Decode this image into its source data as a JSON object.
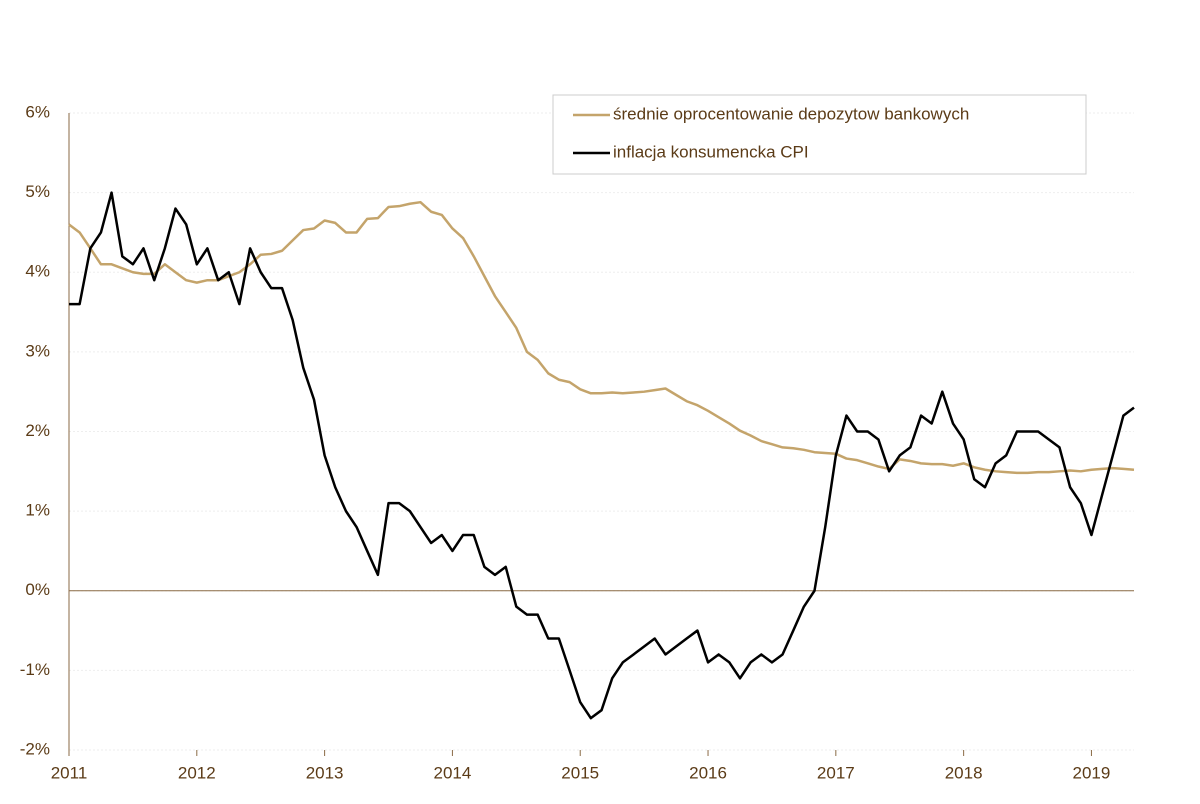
{
  "chart_data": {
    "type": "line",
    "x": [
      2011,
      2011.083,
      2011.167,
      2011.25,
      2011.333,
      2011.417,
      2011.5,
      2011.583,
      2011.667,
      2011.75,
      2011.833,
      2011.917,
      2012,
      2012.083,
      2012.167,
      2012.25,
      2012.333,
      2012.417,
      2012.5,
      2012.583,
      2012.667,
      2012.75,
      2012.833,
      2012.917,
      2013,
      2013.083,
      2013.167,
      2013.25,
      2013.333,
      2013.417,
      2013.5,
      2013.583,
      2013.667,
      2013.75,
      2013.833,
      2013.917,
      2014,
      2014.083,
      2014.167,
      2014.25,
      2014.333,
      2014.417,
      2014.5,
      2014.583,
      2014.667,
      2014.75,
      2014.833,
      2014.917,
      2015,
      2015.083,
      2015.167,
      2015.25,
      2015.333,
      2015.417,
      2015.5,
      2015.583,
      2015.667,
      2015.75,
      2015.833,
      2015.917,
      2016,
      2016.083,
      2016.167,
      2016.25,
      2016.333,
      2016.417,
      2016.5,
      2016.583,
      2016.667,
      2016.75,
      2016.833,
      2016.917,
      2017,
      2017.083,
      2017.167,
      2017.25,
      2017.333,
      2017.417,
      2017.5,
      2017.583,
      2017.667,
      2017.75,
      2017.833,
      2017.917,
      2018,
      2018.083,
      2018.167,
      2018.25,
      2018.333,
      2018.417,
      2018.5,
      2018.583,
      2018.667,
      2018.75,
      2018.833,
      2018.917,
      2019,
      2019.083,
      2019.167,
      2019.25,
      2019.333
    ],
    "series": [
      {
        "name": "średnie oprocentowanie depozytow bankowych",
        "color": "#c4a46b",
        "values": [
          4.6,
          4.5,
          4.3,
          4.1,
          4.1,
          4.05,
          4.0,
          3.98,
          3.98,
          4.1,
          4.0,
          3.9,
          3.87,
          3.9,
          3.9,
          3.95,
          4.0,
          4.1,
          4.22,
          4.23,
          4.27,
          4.4,
          4.53,
          4.55,
          4.65,
          4.62,
          4.5,
          4.5,
          4.67,
          4.68,
          4.82,
          4.83,
          4.86,
          4.88,
          4.76,
          4.72,
          4.55,
          4.43,
          4.2,
          3.95,
          3.7,
          3.5,
          3.3,
          3.0,
          2.9,
          2.73,
          2.65,
          2.62,
          2.53,
          2.48,
          2.48,
          2.49,
          2.48,
          2.49,
          2.5,
          2.52,
          2.54,
          2.46,
          2.38,
          2.33,
          2.26,
          2.18,
          2.1,
          2.01,
          1.95,
          1.88,
          1.84,
          1.8,
          1.79,
          1.77,
          1.74,
          1.73,
          1.72,
          1.66,
          1.64,
          1.6,
          1.56,
          1.53,
          1.65,
          1.63,
          1.6,
          1.59,
          1.59,
          1.57,
          1.6,
          1.55,
          1.52,
          1.5,
          1.49,
          1.48,
          1.48,
          1.49,
          1.49,
          1.5,
          1.51,
          1.5,
          1.52,
          1.53,
          1.54,
          1.53,
          1.52
        ]
      },
      {
        "name": "inflacja konsumencka CPI",
        "color": "#000000",
        "values": [
          3.6,
          3.6,
          4.3,
          4.5,
          5.0,
          4.2,
          4.1,
          4.3,
          3.9,
          4.3,
          4.8,
          4.6,
          4.1,
          4.3,
          3.9,
          4.0,
          3.6,
          4.3,
          4.0,
          3.8,
          3.8,
          3.4,
          2.8,
          2.4,
          1.7,
          1.3,
          1.0,
          0.8,
          0.5,
          0.2,
          1.1,
          1.1,
          1.0,
          0.8,
          0.6,
          0.7,
          0.5,
          0.7,
          0.7,
          0.3,
          0.2,
          0.3,
          -0.2,
          -0.3,
          -0.3,
          -0.6,
          -0.6,
          -1.0,
          -1.4,
          -1.6,
          -1.5,
          -1.1,
          -0.9,
          -0.8,
          -0.7,
          -0.6,
          -0.8,
          -0.7,
          -0.6,
          -0.5,
          -0.9,
          -0.8,
          -0.9,
          -1.1,
          -0.9,
          -0.8,
          -0.9,
          -0.8,
          -0.5,
          -0.2,
          0.0,
          0.8,
          1.7,
          2.2,
          2.0,
          2.0,
          1.9,
          1.5,
          1.7,
          1.8,
          2.2,
          2.1,
          2.5,
          2.1,
          1.9,
          1.4,
          1.3,
          1.6,
          1.7,
          2.0,
          2.0,
          2.0,
          1.9,
          1.8,
          1.3,
          1.1,
          0.7,
          1.2,
          1.7,
          2.2,
          2.3
        ]
      }
    ],
    "xlim": [
      2011,
      2019.333
    ],
    "xticks": [
      2011,
      2012,
      2013,
      2014,
      2015,
      2016,
      2017,
      2018,
      2019
    ],
    "ylim": [
      -2,
      6
    ],
    "yticks": [
      {
        "value": -2,
        "label": "-2%"
      },
      {
        "value": -1,
        "label": "-1%"
      },
      {
        "value": 0,
        "label": "0%"
      },
      {
        "value": 1,
        "label": "1%"
      },
      {
        "value": 2,
        "label": "2%"
      },
      {
        "value": 3,
        "label": "3%"
      },
      {
        "value": 4,
        "label": "4%"
      },
      {
        "value": 5,
        "label": "5%"
      },
      {
        "value": 6,
        "label": "6%"
      }
    ],
    "grid": true,
    "legend": "top-right"
  }
}
